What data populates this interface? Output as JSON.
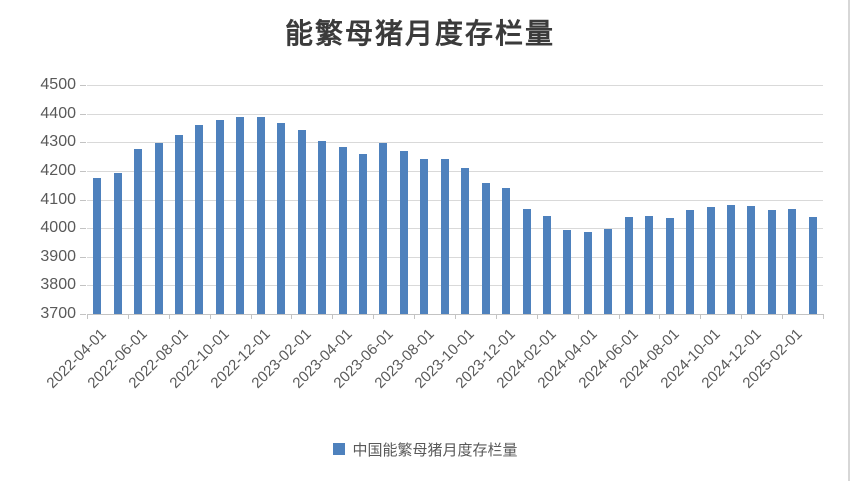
{
  "title": "能繁母猪月度存栏量",
  "legend": {
    "label": "中国能繁母猪月度存栏量"
  },
  "colors": {
    "bar": "#4e81bd",
    "gridline": "#d9d9d9",
    "axis_line": "#c3c3c3",
    "tick_text": "#595959",
    "title_text": "#3b3b3b",
    "window_edge": "#d7d7d7"
  },
  "chart_data": {
    "type": "bar",
    "title": "能繁母猪月度存栏量",
    "series_name": "中国能繁母猪月度存栏量",
    "categories": [
      "2022-04-01",
      "2022-05-01",
      "2022-06-01",
      "2022-07-01",
      "2022-08-01",
      "2022-09-01",
      "2022-10-01",
      "2022-11-01",
      "2022-12-01",
      "2023-01-01",
      "2023-02-01",
      "2023-03-01",
      "2023-04-01",
      "2023-05-01",
      "2023-06-01",
      "2023-07-01",
      "2023-08-01",
      "2023-09-01",
      "2023-10-01",
      "2023-11-01",
      "2023-12-01",
      "2024-01-01",
      "2024-02-01",
      "2024-03-01",
      "2024-04-01",
      "2024-05-01",
      "2024-06-01",
      "2024-07-01",
      "2024-08-01",
      "2024-09-01",
      "2024-10-01",
      "2024-11-01",
      "2024-12-01",
      "2025-01-01",
      "2025-02-01",
      "2025-03-01"
    ],
    "values": [
      4177,
      4192,
      4277,
      4298,
      4324,
      4362,
      4379,
      4388,
      4390,
      4367,
      4343,
      4305,
      4284,
      4258,
      4296,
      4271,
      4241,
      4240,
      4210,
      4158,
      4142,
      4067,
      4042,
      3992,
      3986,
      3996,
      4038,
      4041,
      4036,
      4062,
      4073,
      4080,
      4078,
      4062,
      4066,
      4039
    ],
    "ylim": [
      3700,
      4500
    ],
    "y_ticks": [
      3700,
      3800,
      3900,
      4000,
      4100,
      4200,
      4300,
      4400,
      4500
    ],
    "x_tick_labels": [
      "2022-04-01",
      "2022-06-01",
      "2022-08-01",
      "2022-10-01",
      "2022-12-01",
      "2023-02-01",
      "2023-04-01",
      "2023-06-01",
      "2023-08-01",
      "2023-10-01",
      "2023-12-01",
      "2024-02-01",
      "2024-04-01",
      "2024-06-01",
      "2024-08-01",
      "2024-10-01",
      "2024-12-01",
      "2025-02-01"
    ],
    "grid": "horizontal",
    "legend_position": "bottom",
    "xlabel": "",
    "ylabel": ""
  }
}
